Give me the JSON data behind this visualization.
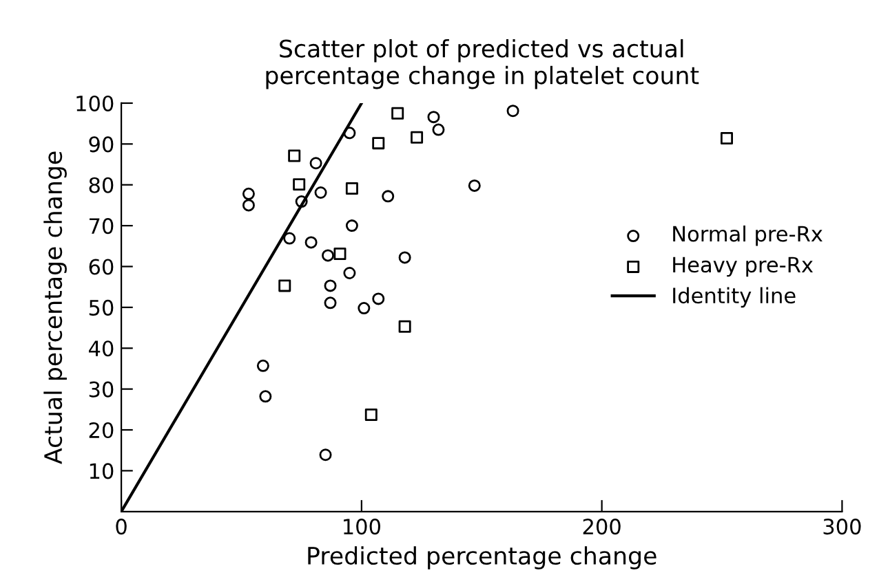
{
  "chart_data": {
    "type": "scatter",
    "title": "Scatter plot of predicted vs actual\npercentage change in platelet count",
    "xlabel": "Predicted percentage change",
    "ylabel": "Actual percentage change",
    "xlim": [
      0,
      300
    ],
    "ylim": [
      0,
      100
    ],
    "xticks": [
      0,
      100,
      200,
      300
    ],
    "yticks": [
      10,
      20,
      30,
      40,
      50,
      60,
      70,
      80,
      90,
      100
    ],
    "grid": false,
    "legend": "right",
    "series": [
      {
        "name": "Normal pre-Rx",
        "marker": "circle",
        "color": "#000000",
        "x": [
          53,
          53,
          95,
          81,
          83,
          111,
          75,
          96,
          70,
          79,
          86,
          118,
          95,
          87,
          87,
          107,
          101,
          59,
          60,
          85,
          163,
          130,
          132,
          147
        ],
        "values": [
          77.8,
          75,
          92.7,
          85.3,
          78.1,
          77.2,
          75.9,
          70,
          66.9,
          65.9,
          62.7,
          62.2,
          58.4,
          55.3,
          51.1,
          52.1,
          49.8,
          35.7,
          28.2,
          13.9,
          98.1,
          96.6,
          93.5,
          79.8
        ]
      },
      {
        "name": "Heavy pre-Rx",
        "marker": "square",
        "color": "#000000",
        "x": [
          115,
          123,
          107,
          72,
          74,
          96,
          91,
          68,
          118,
          104,
          252
        ],
        "values": [
          97.5,
          91.6,
          90.2,
          87.1,
          80.1,
          79.1,
          63.1,
          55.3,
          45.3,
          23.7,
          91.4
        ]
      },
      {
        "name": "Identity line",
        "type": "line",
        "marker": "none",
        "line_style": "solid",
        "color": "#000000",
        "x": [
          0,
          100
        ],
        "values": [
          0,
          100
        ]
      }
    ]
  }
}
